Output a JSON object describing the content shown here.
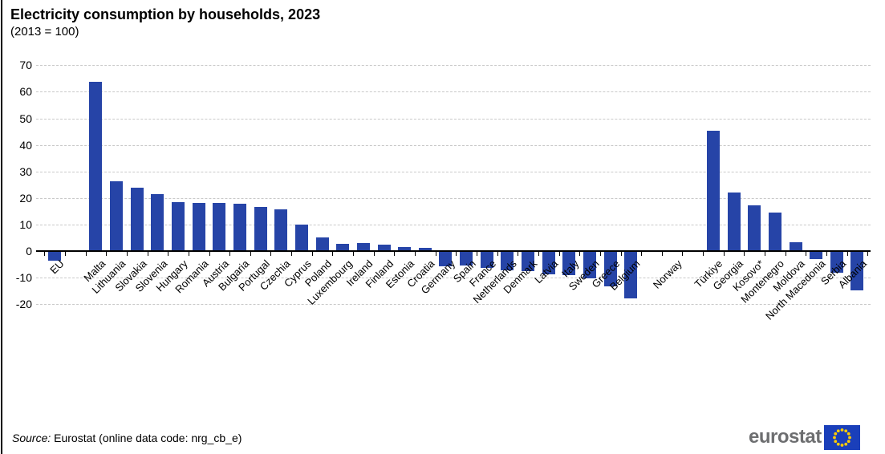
{
  "title": "Electricity consumption by households, 2023",
  "subtitle": "(2013 = 100)",
  "source": {
    "label": "Source:",
    "text": " Eurostat (online data code: nrg_cb_e)"
  },
  "logo": {
    "text": "eurostat"
  },
  "colors": {
    "bar": "#2644a7",
    "grid": "#c9c9c9",
    "axis": "#000000",
    "logo_text": "#6d6e70",
    "flag_blue": "#1a3fba",
    "flag_stars": "#ffcc00"
  },
  "chart_data": {
    "type": "bar",
    "title": "Electricity consumption by households, 2023",
    "subtitle": "(2013 = 100)",
    "ylabel": "",
    "xlabel": "",
    "ylim": [
      -20,
      70
    ],
    "ytick_step": 10,
    "grid": "horizontal-dashed",
    "legend": "none",
    "categories": [
      "EU",
      "Malta",
      "Lithuania",
      "Slovakia",
      "Slovenia",
      "Hungary",
      "Romania",
      "Austria",
      "Bulgaria",
      "Portugal",
      "Czechia",
      "Cyprus",
      "Poland",
      "Luxembourg",
      "Ireland",
      "Finland",
      "Estonia",
      "Croatia",
      "Germany",
      "Spain",
      "France",
      "Netherlands",
      "Denmark",
      "Latvia",
      "Italy",
      "Sweden",
      "Greece",
      "Belgium",
      "Norway",
      "Türkiye",
      "Georgia",
      "Kosovo*",
      "Montenegro",
      "Moldova",
      "North Macedonia",
      "Serbia",
      "Albania"
    ],
    "values": [
      -3.2,
      63.6,
      26.3,
      24.0,
      21.3,
      18.5,
      18.2,
      18.2,
      17.7,
      16.6,
      15.7,
      10.1,
      5.1,
      2.8,
      3.0,
      2.5,
      1.6,
      1.2,
      -5.4,
      -5.2,
      -5.9,
      -6.8,
      -7.3,
      -8.6,
      -8.9,
      -9.9,
      -13.1,
      -17.4,
      0.0,
      45.4,
      22.0,
      17.2,
      14.5,
      3.2,
      -2.6,
      -7.9,
      -14.5
    ],
    "spacer_after_index": [
      0,
      27,
      28
    ]
  }
}
